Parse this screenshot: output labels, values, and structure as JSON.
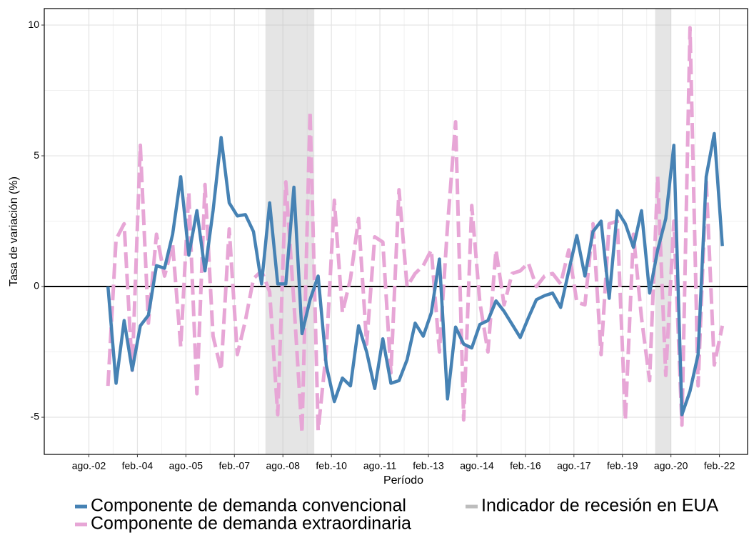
{
  "chart_data": {
    "type": "line",
    "x_label": "Período",
    "y_label": "Tasa de variación (%)",
    "x": [
      2003.17,
      2003.42,
      2003.67,
      2003.92,
      2004.17,
      2004.42,
      2004.67,
      2004.92,
      2005.17,
      2005.42,
      2005.67,
      2005.92,
      2006.17,
      2006.42,
      2006.67,
      2006.92,
      2007.17,
      2007.42,
      2007.67,
      2007.92,
      2008.17,
      2008.42,
      2008.67,
      2008.92,
      2009.17,
      2009.42,
      2009.67,
      2009.92,
      2010.17,
      2010.42,
      2010.67,
      2010.92,
      2011.17,
      2011.42,
      2011.67,
      2011.92,
      2012.17,
      2012.42,
      2012.67,
      2012.92,
      2013.17,
      2013.42,
      2013.67,
      2013.92,
      2014.17,
      2014.42,
      2014.67,
      2014.92,
      2015.17,
      2015.42,
      2015.67,
      2015.92,
      2016.17,
      2016.42,
      2016.67,
      2016.92,
      2017.17,
      2017.42,
      2017.67,
      2017.92,
      2018.17,
      2018.42,
      2018.67,
      2018.92,
      2019.17,
      2019.42,
      2019.67,
      2019.92,
      2020.17,
      2020.42,
      2020.67,
      2020.92,
      2021.17,
      2021.42,
      2021.67,
      2021.92,
      2022.17
    ],
    "series": [
      {
        "name": "Componente de demanda convencional",
        "color": "#4682b4",
        "dash": false,
        "values": [
          0,
          -3.7,
          -1.3,
          -3.2,
          -1.5,
          -1.1,
          0.8,
          0.7,
          2.0,
          4.2,
          1.2,
          2.9,
          0.6,
          2.9,
          5.7,
          3.2,
          2.7,
          2.75,
          2.1,
          0.1,
          3.2,
          0.1,
          0.1,
          3.8,
          -1.8,
          -0.5,
          0.4,
          -3.0,
          -4.4,
          -3.5,
          -3.8,
          -1.5,
          -2.5,
          -3.9,
          -2.0,
          -3.7,
          -3.6,
          -2.8,
          -1.4,
          -1.9,
          -1.0,
          1.05,
          -4.3,
          -1.55,
          -2.2,
          -2.35,
          -1.45,
          -1.3,
          -0.55,
          -0.95,
          -1.45,
          -1.95,
          -1.2,
          -0.5,
          -0.35,
          -0.25,
          -0.8,
          0.6,
          1.95,
          0.4,
          2.1,
          2.5,
          -0.45,
          2.9,
          2.4,
          1.5,
          2.9,
          -0.25,
          1.4,
          2.6,
          5.4,
          -4.9,
          -4.0,
          -2.6,
          4.2,
          5.85,
          1.55
        ]
      },
      {
        "name": "Componente de demanda extraordinaria",
        "color": "#e7a6d6",
        "dash": true,
        "values": [
          -3.8,
          1.8,
          2.4,
          -3.2,
          5.4,
          -1.4,
          2.0,
          0.4,
          1.6,
          -2.3,
          3.6,
          -4.1,
          3.9,
          -1.9,
          -3.2,
          2.2,
          -2.6,
          -1.3,
          0.3,
          0.6,
          -0.2,
          -4.9,
          4.0,
          -0.6,
          -5.6,
          6.7,
          -5.5,
          -2.5,
          3.3,
          -1.0,
          0.3,
          2.6,
          -2.2,
          1.9,
          1.7,
          -3.3,
          3.7,
          0.0,
          0.5,
          0.8,
          1.4,
          -2.5,
          2.3,
          6.3,
          -5.1,
          3.1,
          -0.6,
          -2.5,
          1.4,
          -0.7,
          0.5,
          0.6,
          0.9,
          0.0,
          0.4,
          0.5,
          0.1,
          1.4,
          -0.6,
          -0.7,
          2.4,
          -2.6,
          2.4,
          2.5,
          -5.1,
          2.0,
          -1.2,
          -3.6,
          4.2,
          -3.4,
          2.5,
          -5.3,
          9.9,
          -3.8,
          4.1,
          -3.0,
          -1.5
        ]
      }
    ],
    "recession": {
      "name": "Indicador de recesión en EUA",
      "color": "#bdbdbd",
      "periods": [
        [
          2008.04,
          2009.55
        ],
        [
          2020.09,
          2020.58
        ]
      ]
    },
    "hline": 0,
    "xlim": [
      2001.2,
      2022.95
    ],
    "xticks": [
      {
        "value": 2002.58,
        "label": "ago.-02"
      },
      {
        "value": 2004.08,
        "label": "feb.-04"
      },
      {
        "value": 2005.58,
        "label": "ago.-05"
      },
      {
        "value": 2007.08,
        "label": "feb.-07"
      },
      {
        "value": 2008.58,
        "label": "ago.-08"
      },
      {
        "value": 2010.08,
        "label": "feb.-10"
      },
      {
        "value": 2011.58,
        "label": "ago.-11"
      },
      {
        "value": 2013.08,
        "label": "feb.-13"
      },
      {
        "value": 2014.58,
        "label": "ago.-14"
      },
      {
        "value": 2016.08,
        "label": "feb.-16"
      },
      {
        "value": 2017.58,
        "label": "ago.-17"
      },
      {
        "value": 2019.08,
        "label": "feb.-19"
      },
      {
        "value": 2020.58,
        "label": "ago.-20"
      },
      {
        "value": 2022.08,
        "label": "feb.-22"
      }
    ],
    "ylim": [
      -6.42,
      10.63
    ],
    "yticks": [
      -5,
      0,
      5,
      10
    ],
    "grid": true
  }
}
